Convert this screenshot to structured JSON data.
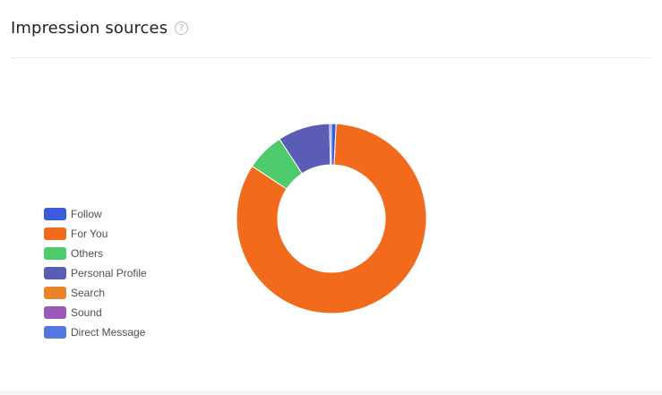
{
  "header": {
    "title": "Impression sources",
    "help_icon": "?"
  },
  "chart_data": {
    "type": "pie",
    "style": "donut",
    "title": "",
    "legend_position": "left",
    "series": [
      {
        "name": "Follow",
        "value": 0.8,
        "color": "#3b5bdb"
      },
      {
        "name": "For You",
        "value": 83.5,
        "color": "#f26b1d"
      },
      {
        "name": "Others",
        "value": 6.5,
        "color": "#4ecb6a"
      },
      {
        "name": "Personal Profile",
        "value": 8.9,
        "color": "#5b5db5"
      },
      {
        "name": "Search",
        "value": 0.0,
        "color": "#e8832a"
      },
      {
        "name": "Sound",
        "value": 0.0,
        "color": "#9b59b6"
      },
      {
        "name": "Direct Message",
        "value": 0.3,
        "color": "#5578e0"
      }
    ]
  }
}
